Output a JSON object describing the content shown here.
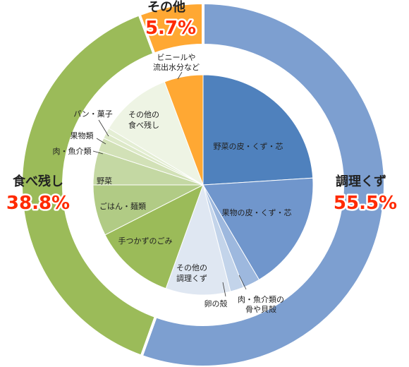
{
  "chart_data": {
    "type": "pie",
    "outer_ring": [
      {
        "name": "調理くず",
        "value": 55.5,
        "label": "55.5%",
        "color": "#7d9fd0"
      },
      {
        "name": "食べ残し",
        "value": 38.8,
        "label": "38.8%",
        "color": "#9bbb59"
      },
      {
        "name": "その他",
        "value": 5.7,
        "label": "5.7%",
        "color": "#ffa833"
      }
    ],
    "inner_pie": [
      {
        "name": "野菜の皮・くず・芯",
        "value": 24.0,
        "color": "#4f81bd",
        "group": "調理くず"
      },
      {
        "name": "果物の皮・くず・芯",
        "value": 17.5,
        "color": "#7096cc",
        "group": "調理くず"
      },
      {
        "name": "肉・魚介類の骨や貝殻",
        "value": 2.5,
        "color": "#9db8de",
        "group": "調理くず"
      },
      {
        "name": "卵の殻",
        "value": 2.0,
        "color": "#c3d4ea",
        "group": "調理くず"
      },
      {
        "name": "その他の調理くず",
        "value": 9.5,
        "color": "#dfe7f2",
        "group": "調理くず"
      },
      {
        "name": "手つかずのごみ",
        "value": 12.0,
        "color": "#9bbb59",
        "group": "食べ残し"
      },
      {
        "name": "ごはん・麺類",
        "value": 7.5,
        "color": "#b1cb85",
        "group": "食べ残し"
      },
      {
        "name": "野菜",
        "value": 5.0,
        "color": "#c4d8a3",
        "group": "食べ残し"
      },
      {
        "name": "肉・魚介類",
        "value": 2.0,
        "color": "#d2e1b7",
        "group": "食べ残し"
      },
      {
        "name": "果物類",
        "value": 0.8,
        "color": "#dde9c8",
        "group": "食べ残し"
      },
      {
        "name": "パン・菓子",
        "value": 0.8,
        "color": "#e4eed4",
        "group": "食べ残し"
      },
      {
        "name": "その他の食べ残し",
        "value": 10.7,
        "color": "#eef4e4",
        "group": "食べ残し"
      },
      {
        "name": "ビニールや流出水分など",
        "value": 5.7,
        "color": "#ffa833",
        "group": "その他"
      }
    ]
  },
  "labels": {
    "outer": {
      "cooking": {
        "name": "調理くず",
        "pct": "55.5%"
      },
      "leftover": {
        "name": "食べ残し",
        "pct": "38.8%"
      },
      "other": {
        "name": "その他",
        "pct": "5.7%"
      }
    },
    "inner": {
      "vegetable_peel": "野菜の皮・くず・芯",
      "fruit_peel": "果物の皮・くず・芯",
      "bones_line1": "肉・魚介類の",
      "bones_line2": "骨や貝殻",
      "eggshell": "卵の殻",
      "other_cooking_line1": "その他の",
      "other_cooking_line2": "調理くず",
      "untouched": "手つかずのごみ",
      "rice_noodles": "ごはん・麺類",
      "vegetables": "野菜",
      "meat_fish": "肉・魚介類",
      "fruits": "果物類",
      "bread_sweets": "パン・菓子",
      "other_leftover_line1": "その他の",
      "other_leftover_line2": "食べ残し",
      "vinyl_line1": "ビニールや",
      "vinyl_line2": "流出水分など"
    }
  }
}
